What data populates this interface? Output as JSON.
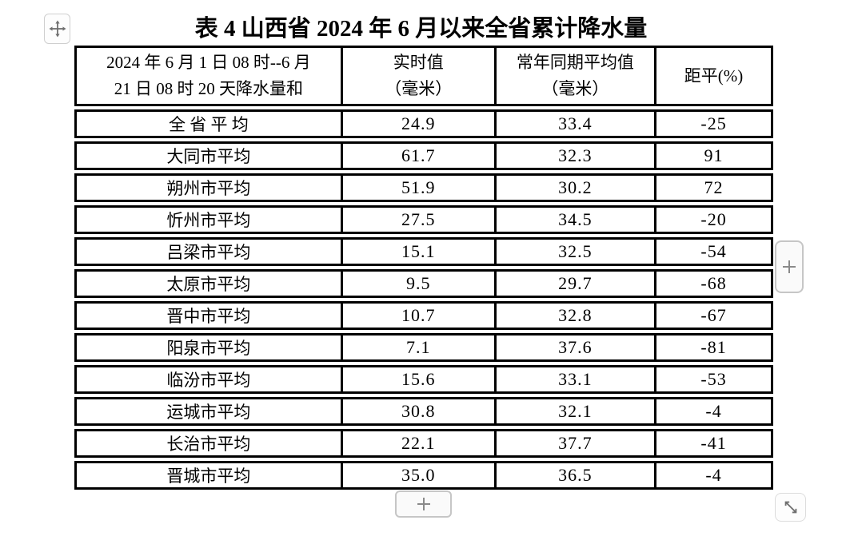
{
  "title": "表 4 山西省 2024 年 6 月以来全省累计降水量",
  "colors": {
    "table_border": "#000000",
    "text": "#000000",
    "background": "#ffffff",
    "button_border": "#c6c6c6",
    "button_background": "#fafafa",
    "icon_color": "#777777"
  },
  "controls": {
    "move_icon": "move-handle-icon",
    "add_right_icon": "plus-icon",
    "add_bottom_icon": "plus-icon",
    "resize_icon": "diagonal-resize-icon"
  },
  "table": {
    "header": {
      "col1_line1": "2024 年 6 月 1 日 08 时--6 月",
      "col1_line2": "21 日 08 时 20 天降水量和",
      "col2_line1": "实时值",
      "col2_line2": "（毫米）",
      "col3_line1": "常年同期平均值",
      "col3_line2": "（毫米）",
      "col4": "距平(%)"
    },
    "rows": [
      {
        "label": "全 省 平 均",
        "realtime": "24.9",
        "normal": "33.4",
        "anomaly": "-25"
      },
      {
        "label": "大同市平均",
        "realtime": "61.7",
        "normal": "32.3",
        "anomaly": "91"
      },
      {
        "label": "朔州市平均",
        "realtime": "51.9",
        "normal": "30.2",
        "anomaly": "72"
      },
      {
        "label": "忻州市平均",
        "realtime": "27.5",
        "normal": "34.5",
        "anomaly": "-20"
      },
      {
        "label": "吕梁市平均",
        "realtime": "15.1",
        "normal": "32.5",
        "anomaly": "-54"
      },
      {
        "label": "太原市平均",
        "realtime": "9.5",
        "normal": "29.7",
        "anomaly": "-68"
      },
      {
        "label": "晋中市平均",
        "realtime": "10.7",
        "normal": "32.8",
        "anomaly": "-67"
      },
      {
        "label": "阳泉市平均",
        "realtime": "7.1",
        "normal": "37.6",
        "anomaly": "-81"
      },
      {
        "label": "临汾市平均",
        "realtime": "15.6",
        "normal": "33.1",
        "anomaly": "-53"
      },
      {
        "label": "运城市平均",
        "realtime": "30.8",
        "normal": "32.1",
        "anomaly": "-4"
      },
      {
        "label": "长治市平均",
        "realtime": "22.1",
        "normal": "37.7",
        "anomaly": "-41"
      },
      {
        "label": "晋城市平均",
        "realtime": "35.0",
        "normal": "36.5",
        "anomaly": "-4"
      }
    ]
  },
  "chart_data": {
    "type": "table",
    "title": "表4 山西省2024年6月以来全省累计降水量",
    "columns": [
      "2024年6月1日08时--6月21日08时20天降水量和",
      "实时值（毫米）",
      "常年同期平均值（毫米）",
      "距平(%)"
    ],
    "rows": [
      [
        "全省平均",
        24.9,
        33.4,
        -25
      ],
      [
        "大同市平均",
        61.7,
        32.3,
        91
      ],
      [
        "朔州市平均",
        51.9,
        30.2,
        72
      ],
      [
        "忻州市平均",
        27.5,
        34.5,
        -20
      ],
      [
        "吕梁市平均",
        15.1,
        32.5,
        -54
      ],
      [
        "太原市平均",
        9.5,
        29.7,
        -68
      ],
      [
        "晋中市平均",
        10.7,
        32.8,
        -67
      ],
      [
        "阳泉市平均",
        7.1,
        37.6,
        -81
      ],
      [
        "临汾市平均",
        15.6,
        33.1,
        -53
      ],
      [
        "运城市平均",
        30.8,
        32.1,
        -4
      ],
      [
        "长治市平均",
        22.1,
        37.7,
        -41
      ],
      [
        "晋城市平均",
        35.0,
        36.5,
        -4
      ]
    ]
  }
}
